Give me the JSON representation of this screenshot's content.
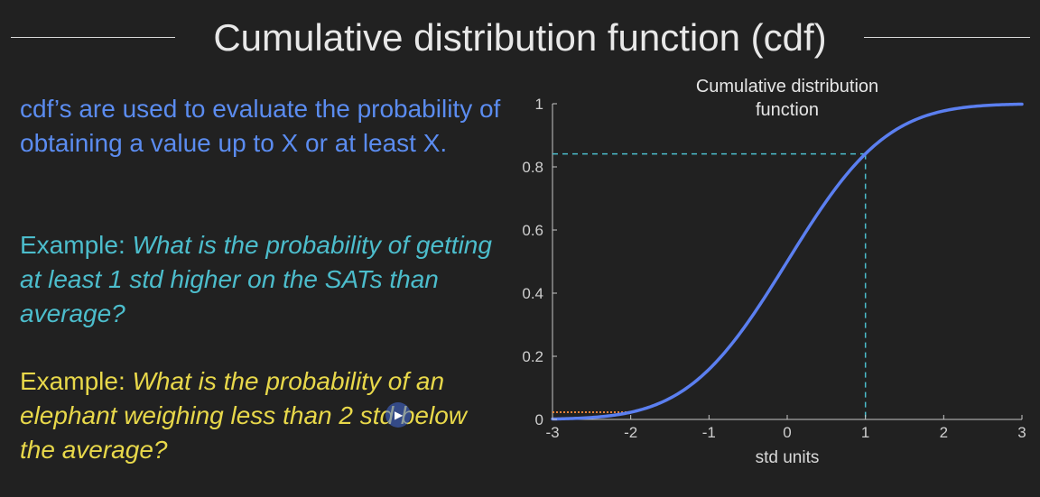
{
  "slide": {
    "title": "Cumulative distribution function (cdf)",
    "intro": "cdf’s are used to evaluate the probability of obtaining a value up to X or at least X.",
    "example1": {
      "label": "Example: ",
      "question": "What is the probability of getting at least 1 std higher on the SATs than average?"
    },
    "example2": {
      "label": "Example: ",
      "question": "What is the probability of an elephant weighing less than 2 std below the average?"
    }
  },
  "colors": {
    "background": "#212121",
    "title": "#e8e8e8",
    "intro_text": "#5b8cf0",
    "example1_text": "#4cbdcc",
    "example2_text": "#e8d84a",
    "curve": "#5b7ff0",
    "guide_teal": "#4cbdcc",
    "guide_orange": "#e8823a",
    "axis": "#c8c8c8"
  },
  "chart_data": {
    "type": "line",
    "title": "Cumulative distribution function",
    "xlabel": "std units",
    "ylabel": "",
    "xlim": [
      -3,
      3
    ],
    "ylim": [
      0,
      1
    ],
    "xticks": [
      -3,
      -2,
      -1,
      0,
      1,
      2,
      3
    ],
    "yticks": [
      0,
      0.2,
      0.4,
      0.6,
      0.8,
      1
    ],
    "series": [
      {
        "function": "normal_cdf",
        "x": [
          -3,
          -2.5,
          -2,
          -1.5,
          -1,
          -0.5,
          0,
          0.5,
          1,
          1.5,
          2,
          2.5,
          3
        ],
        "y": [
          0.001,
          0.006,
          0.023,
          0.067,
          0.159,
          0.309,
          0.5,
          0.691,
          0.841,
          0.933,
          0.977,
          0.994,
          0.999
        ]
      }
    ],
    "guides": [
      {
        "style": "dashed",
        "color": "#4cbdcc",
        "x": 1,
        "y": 0.841
      },
      {
        "style": "dotted",
        "color": "#e8823a",
        "x": -2,
        "y": 0.023
      }
    ],
    "grid": false
  }
}
